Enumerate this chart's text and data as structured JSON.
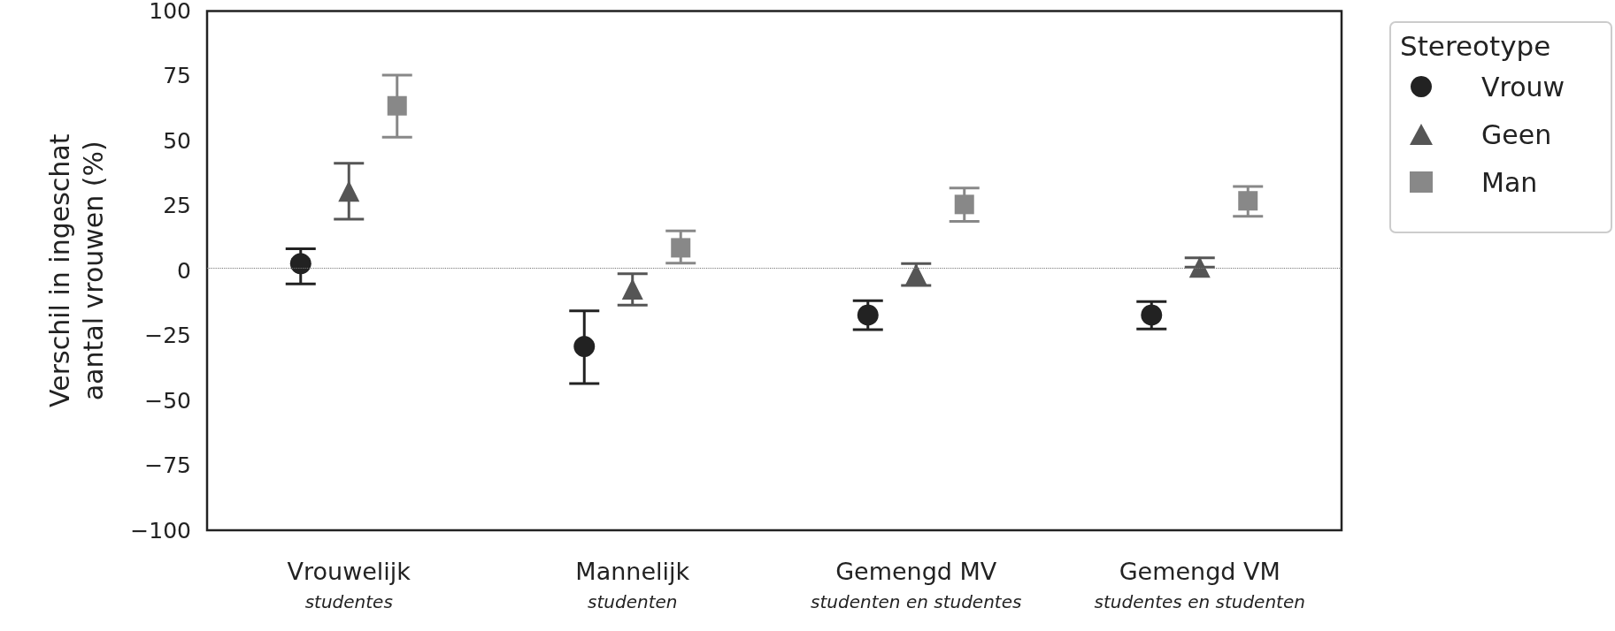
{
  "chart_data": {
    "type": "scatter",
    "ylabel": "Verschil in ingeschat\naantal vrouwen (%)",
    "legend_title": "Stereotype",
    "legend": "right",
    "categories": [
      "Vrouwelijk\nstudentes",
      "Mannelijk\nstudenten",
      "Gemengd MV\nstudenten en studentes",
      "Gemengd VM\nstudentes en studenten"
    ],
    "ylim": [
      -100,
      100
    ],
    "yticks": [
      {
        "value": -100,
        "label": "−100"
      },
      {
        "value": -75,
        "label": "−75"
      },
      {
        "value": -50,
        "label": "−50"
      },
      {
        "value": -25,
        "label": "−25"
      },
      0,
      25,
      50,
      75,
      100
    ],
    "ref_lines": [
      {
        "axis": "y",
        "value": 1,
        "line_style": "dotted",
        "color": "#777777"
      }
    ],
    "series": [
      {
        "name": "Vrouw",
        "color": "#222222",
        "marker": "circle",
        "values": [
          2.7,
          -29.2,
          -17.1,
          -17.1
        ],
        "errors": [
          [
            -5.1,
            8.4
          ],
          [
            -43.5,
            -15.5
          ],
          [
            -22.7,
            -11.6
          ],
          [
            -22.5,
            -11.9
          ]
        ]
      },
      {
        "name": "Geen",
        "color": "#555555",
        "marker": "triangle",
        "values": [
          30.6,
          -7.1,
          -1.3,
          1.4
        ],
        "errors": [
          [
            19.8,
            41.4
          ],
          [
            -13.3,
            -1.2
          ],
          [
            -5.7,
            2.7
          ],
          [
            1.4,
            4.9
          ]
        ]
      },
      {
        "name": "Man",
        "color": "#888888",
        "marker": "square",
        "values": [
          63.5,
          8.8,
          25.5,
          26.9
        ],
        "errors": [
          [
            51.4,
            75.3
          ],
          [
            2.9,
            15.3
          ],
          [
            19.0,
            31.8
          ],
          [
            20.9,
            32.4
          ]
        ]
      }
    ]
  }
}
